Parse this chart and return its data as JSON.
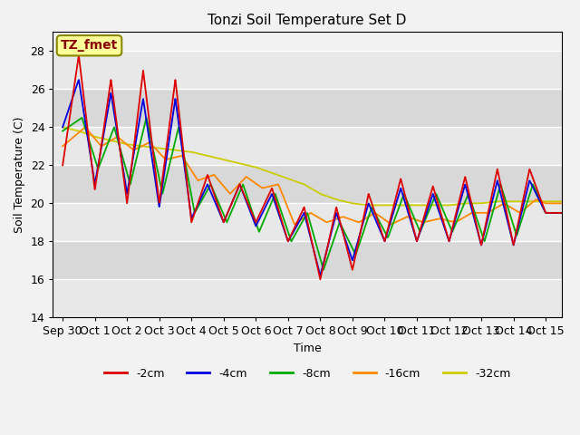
{
  "title": "Tonzi Soil Temperature Set D",
  "xlabel": "Time",
  "ylabel": "Soil Temperature (C)",
  "ylim": [
    14,
    29
  ],
  "xlim": [
    -0.3,
    15.5
  ],
  "annotation": "TZ_fmet",
  "series_labels": [
    "-2cm",
    "-4cm",
    "-8cm",
    "-16cm",
    "-32cm"
  ],
  "series_colors": [
    "#dd0000",
    "#0000dd",
    "#00aa00",
    "#ff8800",
    "#cccc00"
  ],
  "xtick_labels": [
    "Sep 30",
    "Oct 1",
    "Oct 2",
    "Oct 3",
    "Oct 4",
    "Oct 5",
    "Oct 6",
    "Oct 7",
    "Oct 8",
    "Oct 9",
    "Oct 10",
    "Oct 11",
    "Oct 12",
    "Oct 13",
    "Oct 14",
    "Oct 15"
  ],
  "xtick_positions": [
    0,
    1,
    2,
    3,
    4,
    5,
    6,
    7,
    8,
    9,
    10,
    11,
    12,
    13,
    14,
    15
  ],
  "background_color": "#f2f2f2",
  "plot_bg_stripes": true,
  "grid_color": "#ffffff",
  "ytick_positions": [
    14,
    16,
    18,
    20,
    22,
    24,
    26,
    28
  ]
}
